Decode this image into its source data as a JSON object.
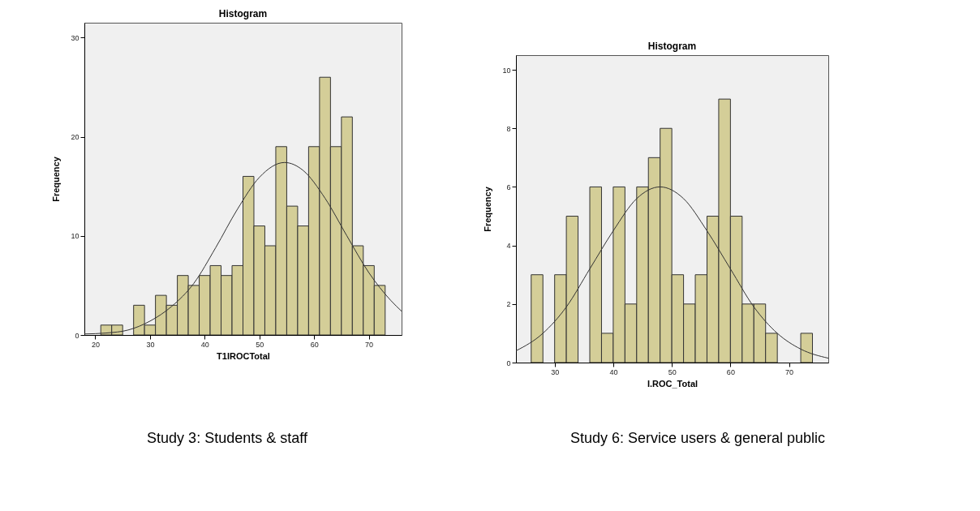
{
  "chart_data": [
    {
      "type": "histogram",
      "title": "Histogram",
      "xlabel": "T1IROCTotal",
      "ylabel": "Frequency",
      "annotations": [
        "Study 3: Students & staff"
      ],
      "bins": [
        21,
        23,
        25,
        27,
        29,
        31,
        33,
        35,
        37,
        39,
        41,
        43,
        45,
        47,
        49,
        51,
        53,
        55,
        57,
        59,
        61,
        63,
        65,
        67,
        69,
        71,
        73
      ],
      "xlim": [
        18,
        76
      ],
      "xticks": [
        20,
        30,
        40,
        50,
        60,
        70
      ],
      "ylim": [
        0,
        31.5
      ],
      "yticks": [
        0,
        10,
        20,
        30
      ],
      "grid": false,
      "series": [
        {
          "color": "#d4ce98",
          "values": [
            1,
            1,
            0,
            3,
            1,
            4,
            3,
            6,
            5,
            6,
            7,
            6,
            7,
            16,
            11,
            9,
            19,
            13,
            11,
            19,
            26,
            19,
            22,
            9,
            7,
            5
          ]
        },
        {
          "type": "line",
          "color": "#333333",
          "x": [
            18,
            22,
            26,
            30,
            34,
            38,
            42,
            46,
            50,
            54.6,
            58,
            62,
            66,
            70,
            74,
            76
          ],
          "values": [
            0.1,
            0.2,
            0.5,
            1.4,
            2.9,
            5.2,
            8.8,
            12.7,
            15.9,
            17.4,
            16.6,
            13.8,
            10.0,
            6.3,
            3.5,
            2.4
          ]
        }
      ]
    },
    {
      "type": "histogram",
      "title": "Histogram",
      "xlabel": "I.ROC_Total",
      "ylabel": "Frequency",
      "annotations": [
        "Study 6: Service users & general public"
      ],
      "bins": [
        26,
        28,
        30,
        32,
        34,
        36,
        38,
        40,
        42,
        44,
        46,
        48,
        50,
        52,
        54,
        56,
        58,
        60,
        62,
        64,
        66,
        68,
        70,
        72,
        74
      ],
      "xlim": [
        23.4,
        76.7
      ],
      "xticks": [
        30,
        40,
        50,
        60,
        70
      ],
      "ylim": [
        0,
        10.5
      ],
      "yticks": [
        0,
        2,
        4,
        6,
        8,
        10
      ],
      "grid": false,
      "series": [
        {
          "color": "#d4ce98",
          "values": [
            3,
            0,
            3,
            5,
            0,
            6,
            1,
            6,
            2,
            6,
            7,
            8,
            3,
            2,
            3,
            5,
            9,
            5,
            2,
            2,
            1,
            0,
            0,
            1
          ]
        },
        {
          "type": "line",
          "color": "#333333",
          "x": [
            23.4,
            28,
            32,
            36,
            40,
            44,
            48,
            52,
            56,
            60,
            64,
            68,
            72,
            76.7
          ],
          "values": [
            0.4,
            1.0,
            1.9,
            3.2,
            4.5,
            5.6,
            6.0,
            5.6,
            4.5,
            3.2,
            1.9,
            1.0,
            0.46,
            0.15
          ]
        }
      ]
    }
  ]
}
